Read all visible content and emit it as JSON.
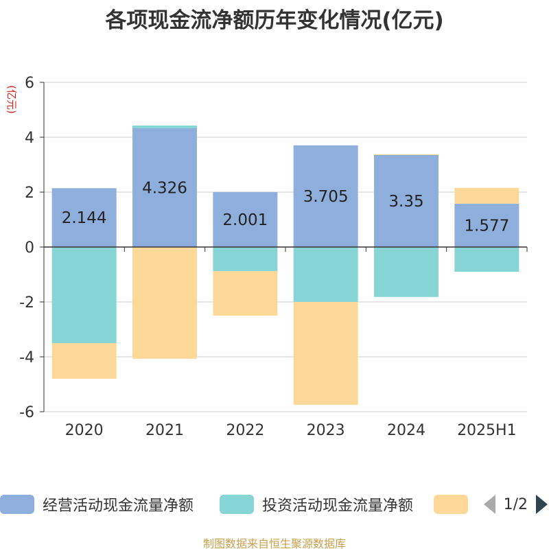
{
  "chart_data": {
    "type": "bar",
    "stacked": true,
    "title": "各项现金流净额历年变化情况(亿元)",
    "ylabel": "(亿元)",
    "categories": [
      "2020",
      "2021",
      "2022",
      "2023",
      "2024",
      "2025H1"
    ],
    "ylim": [
      -6,
      6
    ],
    "yticks": [
      6,
      4,
      2,
      0,
      -2,
      -4,
      -6
    ],
    "grid": true,
    "legend_position": "bottom",
    "series": [
      {
        "name": "经营活动现金流量净额",
        "color": "#8eaedb",
        "values": [
          2.144,
          4.326,
          2.001,
          3.705,
          3.35,
          1.577
        ],
        "show_labels": true
      },
      {
        "name": "投资活动现金流量净额",
        "color": "#88d5d6",
        "values": [
          -3.5,
          0.1,
          -0.88,
          -2.0,
          -1.82,
          -0.9
        ],
        "show_labels": false
      },
      {
        "name": "",
        "color": "#fed899",
        "values": [
          -1.3,
          -4.07,
          -1.62,
          -3.75,
          0.03,
          0.58
        ],
        "show_labels": false
      }
    ],
    "data_labels": [
      "2.144",
      "4.326",
      "2.001",
      "3.705",
      "3.35",
      "1.577"
    ]
  },
  "legend": {
    "items": [
      {
        "label": "经营活动现金流量净额",
        "color": "#8eaedb"
      },
      {
        "label": "投资活动现金流量净额",
        "color": "#88d5d6"
      },
      {
        "label": "",
        "color": "#fed899"
      }
    ],
    "pager_text": "1/2"
  },
  "source_note": "制图数据来自恒生聚源数据库"
}
